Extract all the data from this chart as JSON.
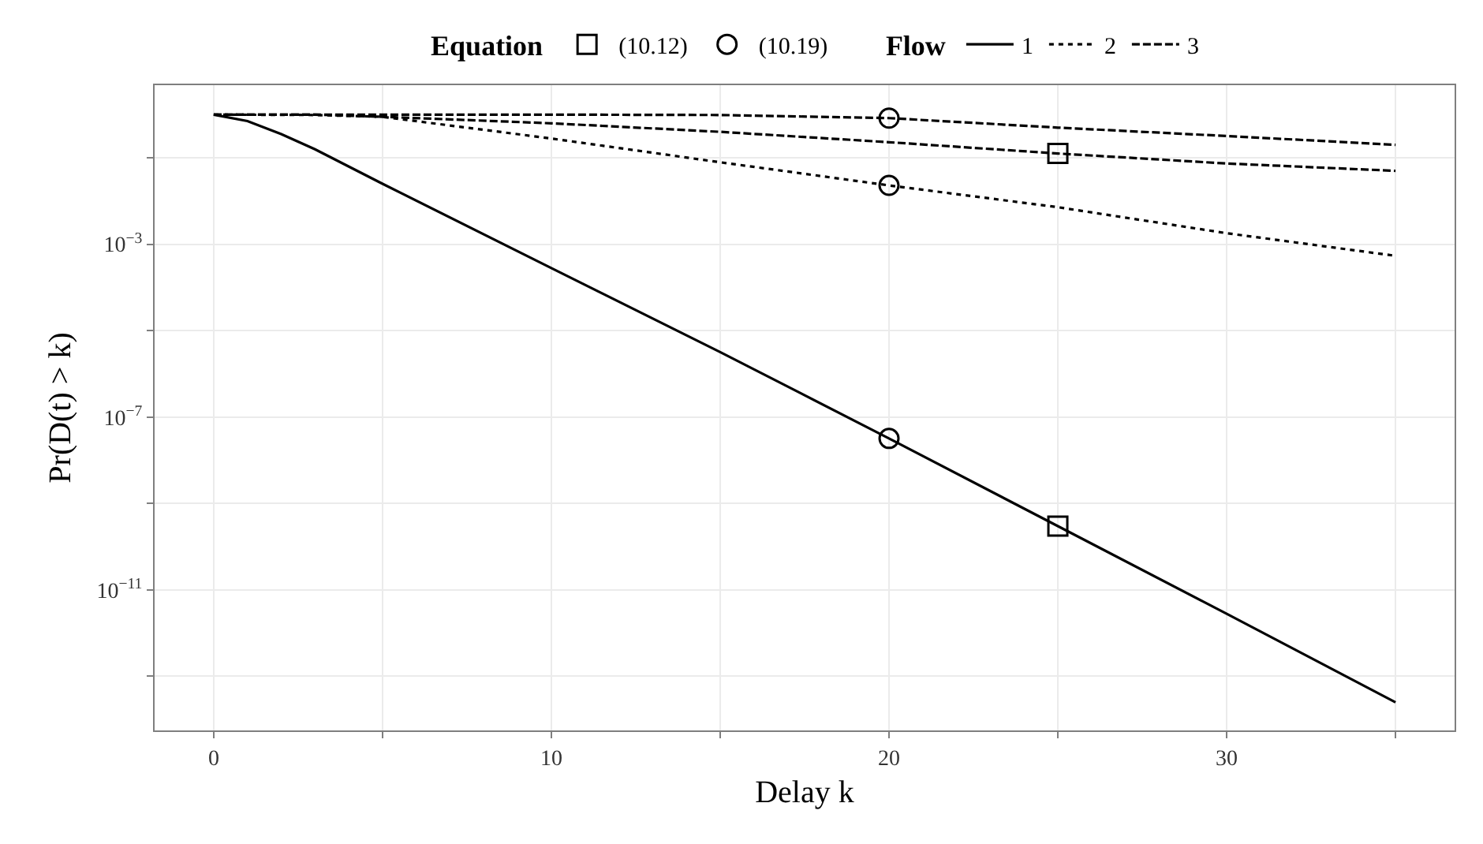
{
  "chart_data": {
    "type": "line",
    "xlabel": "Delay k",
    "ylabel": "Pr(D(t) > k)",
    "legend_title": [
      "Equation",
      "Flow"
    ],
    "log": "y",
    "grid": true,
    "legend": "top",
    "xlim": [
      -1.75,
      36.75
    ],
    "xticks": [
      0,
      {
        "value": 5,
        "label": null
      },
      10,
      {
        "value": 15,
        "label": null
      },
      20,
      {
        "value": 25,
        "label": null
      },
      30,
      {
        "value": 35,
        "label": null
      }
    ],
    "ylim": [
      5.6e-15,
      4.8
    ],
    "yticks": [
      {
        "value": 1e-13,
        "label": null
      },
      {
        "value": 1e-11,
        "label": "10$^{−11}$"
      },
      {
        "value": 1e-09,
        "label": null
      },
      {
        "value": 1e-07,
        "label": "10$^{−7}$"
      },
      {
        "value": 1e-05,
        "label": null
      },
      {
        "value": 0.001,
        "label": "10$^{−3}$"
      },
      {
        "value": 0.1,
        "label": null
      }
    ],
    "series": [
      {
        "name": "(10.12)",
        "type": "scatter",
        "marker": "square",
        "color": "#000000",
        "x": [
          25,
          25
        ],
        "values": [
          0.126,
          3e-10
        ]
      },
      {
        "name": "(10.19)",
        "type": "scatter",
        "marker": "circle",
        "color": "#000000",
        "x": [
          20,
          20,
          20
        ],
        "values": [
          0.83,
          0.023,
          3.2e-08
        ]
      },
      {
        "name": "1",
        "line_style": "solid",
        "color": "#000000",
        "x": [
          0,
          1,
          2,
          3,
          5,
          10,
          15,
          20,
          25,
          30,
          35
        ],
        "values": [
          1,
          0.708,
          0.355,
          0.158,
          0.0251,
          0.00028,
          3.2e-06,
          3.2e-08,
          3e-10,
          2.8e-12,
          2.5e-14
        ]
      },
      {
        "name": "2",
        "line_style": "dotted",
        "color": "#000000",
        "x": [
          0,
          3,
          5,
          10,
          15,
          20,
          25,
          30,
          35
        ],
        "values": [
          1,
          0.98,
          0.89,
          0.28,
          0.079,
          0.023,
          0.0072,
          0.0018,
          0.00054
        ]
      },
      {
        "name": "3",
        "line_style": "dashed",
        "color": "#000000",
        "x": [
          0,
          10,
          15,
          20,
          25,
          30,
          35
        ],
        "values": [
          1,
          1,
          0.98,
          0.83,
          0.5,
          0.32,
          0.2
        ]
      },
      {
        "line_style": "dashed",
        "color": "#000000",
        "x": [
          0,
          3,
          5,
          10,
          15,
          20,
          25,
          30,
          35
        ],
        "values": [
          1,
          1,
          0.89,
          0.63,
          0.4,
          0.23,
          0.126,
          0.074,
          0.05
        ]
      }
    ]
  }
}
